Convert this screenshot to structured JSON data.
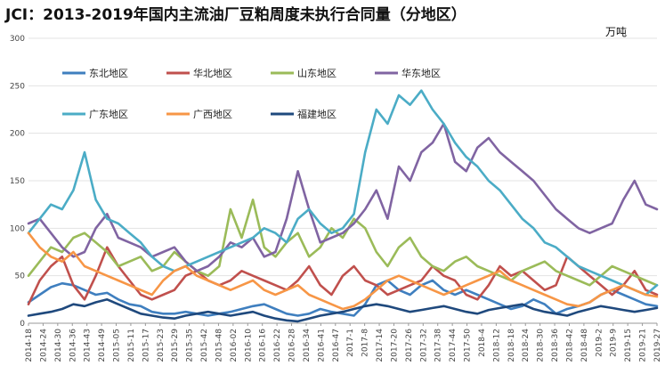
{
  "chart_data": {
    "type": "line",
    "title": "JCI：2013-2019年国内主流油厂豆粕周度未执行合同量（分地区）",
    "unit_label": "万吨",
    "ylim": [
      0,
      300
    ],
    "y_ticks": [
      0,
      50,
      100,
      150,
      200,
      250,
      300
    ],
    "grid": true,
    "legend_position": "top-left",
    "x_ticks": [
      "2014-18",
      "2014-24",
      "2014-30",
      "2014-36",
      "2014-43",
      "2014-49",
      "2015-05",
      "2015-11",
      "2015-17",
      "2015-23",
      "2015-29",
      "2015-35",
      "2015-42",
      "2015-48",
      "2016-02",
      "2016-10",
      "2016-16",
      "2016-22",
      "2016-28",
      "2016-34",
      "2016-41",
      "2016-47",
      "2017-1",
      "2017-8",
      "2017-14",
      "2017-20",
      "2017-26",
      "2017-32",
      "2017-38",
      "2017-44",
      "2017-50",
      "2018-4",
      "2018-12",
      "2018-18",
      "2018-24",
      "2018-30",
      "2018-36",
      "2018-42",
      "2018-48",
      "2019-2",
      "2019-9",
      "2019-15",
      "2019-21",
      "2019-27"
    ],
    "series": [
      {
        "name": "东北地区",
        "color": "#3f7fbf",
        "values": [
          22,
          30,
          38,
          42,
          40,
          35,
          30,
          32,
          25,
          20,
          18,
          12,
          10,
          10,
          12,
          10,
          8,
          10,
          12,
          15,
          18,
          20,
          15,
          10,
          8,
          10,
          15,
          12,
          10,
          8,
          20,
          40,
          45,
          35,
          30,
          40,
          45,
          35,
          30,
          35,
          30,
          25,
          20,
          15,
          18,
          25,
          20,
          10,
          15,
          18,
          22,
          30,
          35,
          30,
          25,
          20,
          18
        ]
      },
      {
        "name": "华北地区",
        "color": "#c0504d",
        "values": [
          20,
          45,
          60,
          70,
          40,
          25,
          50,
          80,
          60,
          45,
          30,
          25,
          30,
          35,
          50,
          55,
          45,
          40,
          45,
          55,
          50,
          45,
          40,
          35,
          45,
          60,
          40,
          30,
          50,
          60,
          45,
          40,
          30,
          35,
          40,
          45,
          60,
          50,
          45,
          30,
          25,
          40,
          60,
          50,
          55,
          45,
          35,
          40,
          70,
          60,
          50,
          40,
          30,
          40,
          55,
          35,
          30
        ]
      },
      {
        "name": "山东地区",
        "color": "#9bbb59",
        "values": [
          50,
          65,
          80,
          75,
          90,
          95,
          85,
          75,
          60,
          65,
          70,
          55,
          60,
          75,
          65,
          55,
          50,
          60,
          120,
          90,
          130,
          80,
          70,
          85,
          95,
          70,
          80,
          100,
          90,
          110,
          100,
          75,
          60,
          80,
          90,
          70,
          60,
          55,
          65,
          70,
          60,
          55,
          50,
          45,
          55,
          60,
          65,
          55,
          50,
          45,
          40,
          50,
          60,
          55,
          50,
          45,
          40
        ]
      },
      {
        "name": "华东地区",
        "color": "#8064a2",
        "values": [
          105,
          110,
          95,
          80,
          70,
          75,
          100,
          115,
          90,
          85,
          80,
          70,
          75,
          80,
          65,
          55,
          60,
          70,
          85,
          80,
          90,
          70,
          75,
          110,
          160,
          120,
          85,
          90,
          95,
          105,
          120,
          140,
          110,
          165,
          150,
          180,
          190,
          210,
          170,
          160,
          185,
          195,
          180,
          170,
          160,
          150,
          135,
          120,
          110,
          100,
          95,
          100,
          105,
          130,
          150,
          125,
          120
        ]
      },
      {
        "name": "广东地区",
        "color": "#4bacc6",
        "values": [
          95,
          110,
          125,
          120,
          140,
          180,
          130,
          110,
          105,
          95,
          85,
          70,
          60,
          55,
          60,
          65,
          70,
          75,
          80,
          85,
          90,
          100,
          95,
          85,
          110,
          120,
          105,
          95,
          100,
          115,
          180,
          225,
          210,
          240,
          230,
          245,
          225,
          210,
          190,
          175,
          165,
          150,
          140,
          125,
          110,
          100,
          85,
          80,
          70,
          60,
          55,
          50,
          45,
          40,
          35,
          30,
          40
        ]
      },
      {
        "name": "广西地区",
        "color": "#f79646",
        "values": [
          95,
          80,
          70,
          65,
          75,
          60,
          55,
          50,
          45,
          40,
          35,
          30,
          45,
          55,
          60,
          50,
          45,
          40,
          35,
          40,
          45,
          35,
          30,
          35,
          40,
          30,
          25,
          20,
          15,
          18,
          25,
          35,
          45,
          50,
          45,
          40,
          35,
          30,
          35,
          40,
          45,
          50,
          55,
          45,
          40,
          35,
          30,
          25,
          20,
          18,
          22,
          30,
          35,
          40,
          35,
          30,
          28
        ]
      },
      {
        "name": "福建地区",
        "color": "#1f497d",
        "values": [
          8,
          10,
          12,
          15,
          20,
          18,
          22,
          25,
          20,
          15,
          10,
          8,
          6,
          5,
          8,
          10,
          12,
          10,
          8,
          10,
          12,
          8,
          5,
          3,
          2,
          5,
          8,
          10,
          12,
          15,
          18,
          20,
          18,
          15,
          12,
          14,
          16,
          18,
          15,
          12,
          10,
          14,
          16,
          18,
          20,
          15,
          12,
          10,
          8,
          12,
          15,
          18,
          16,
          14,
          12,
          14,
          16
        ]
      }
    ]
  }
}
